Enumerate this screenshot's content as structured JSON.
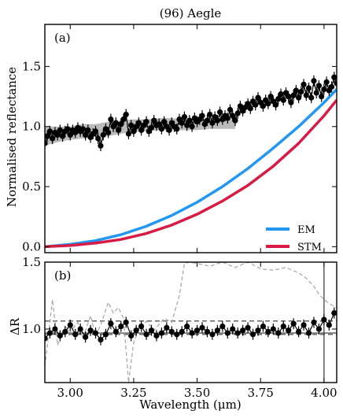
{
  "chart_data": [
    {
      "panel": "a",
      "type": "scatter",
      "title": "(96) Aegle",
      "panel_label": "(a)",
      "xlabel": "",
      "ylabel": "Normalised reflectance",
      "xlim": [
        2.9,
        4.05
      ],
      "ylim": [
        -0.05,
        1.85
      ],
      "xticks": [
        3.0,
        3.25,
        3.5,
        3.75,
        4.0
      ],
      "xtick_labels": [
        "",
        "",
        "",
        "",
        ""
      ],
      "yticks": [
        0.0,
        0.5,
        1.0,
        1.5
      ],
      "ytick_labels": [
        "0.0",
        "0.5",
        "1.0",
        "1.5"
      ],
      "legend": [
        "EM",
        "STM"
      ],
      "legend_position": "bottom-right",
      "colors": {
        "data": "#000000",
        "band": "#aaaaaa",
        "EM": "#2196f3",
        "STM": "#d81b45"
      },
      "band": {
        "x": [
          2.9,
          2.95,
          3.0,
          3.05,
          3.1,
          3.15,
          3.2,
          3.25,
          3.3,
          3.35,
          3.4,
          3.45,
          3.5,
          3.55,
          3.6,
          3.65
        ],
        "lower": [
          0.84,
          0.87,
          0.89,
          0.9,
          0.91,
          0.92,
          0.94,
          0.96,
          0.96,
          0.97,
          0.97,
          0.97,
          0.97,
          0.98,
          0.98,
          0.98
        ],
        "upper": [
          1.0,
          1.0,
          1.0,
          1.02,
          1.02,
          1.04,
          1.05,
          1.06,
          1.06,
          1.07,
          1.07,
          1.06,
          1.06,
          1.06,
          1.07,
          1.07
        ]
      },
      "series": [
        {
          "name": "EM",
          "kind": "line",
          "x": [
            2.9,
            3.0,
            3.1,
            3.2,
            3.3,
            3.4,
            3.5,
            3.6,
            3.7,
            3.8,
            3.9,
            4.0,
            4.05
          ],
          "y": [
            0.0,
            0.02,
            0.05,
            0.1,
            0.17,
            0.26,
            0.37,
            0.5,
            0.65,
            0.82,
            1.0,
            1.2,
            1.31
          ]
        },
        {
          "name": "STM",
          "kind": "line",
          "x": [
            2.9,
            3.0,
            3.1,
            3.2,
            3.3,
            3.4,
            3.5,
            3.6,
            3.7,
            3.8,
            3.9,
            4.0,
            4.05
          ],
          "y": [
            0.0,
            0.01,
            0.03,
            0.06,
            0.11,
            0.18,
            0.27,
            0.38,
            0.51,
            0.67,
            0.86,
            1.09,
            1.22
          ]
        },
        {
          "name": "data",
          "kind": "points",
          "x": [
            2.9,
            2.91,
            2.92,
            2.93,
            2.94,
            2.95,
            2.96,
            2.97,
            2.98,
            2.99,
            3.0,
            3.01,
            3.02,
            3.03,
            3.04,
            3.05,
            3.06,
            3.07,
            3.08,
            3.09,
            3.1,
            3.11,
            3.12,
            3.13,
            3.14,
            3.15,
            3.16,
            3.17,
            3.18,
            3.19,
            3.2,
            3.21,
            3.22,
            3.23,
            3.24,
            3.25,
            3.26,
            3.27,
            3.28,
            3.29,
            3.3,
            3.31,
            3.32,
            3.33,
            3.34,
            3.35,
            3.36,
            3.37,
            3.38,
            3.39,
            3.4,
            3.41,
            3.42,
            3.43,
            3.44,
            3.45,
            3.46,
            3.47,
            3.48,
            3.49,
            3.5,
            3.51,
            3.52,
            3.53,
            3.54,
            3.55,
            3.56,
            3.57,
            3.58,
            3.59,
            3.6,
            3.61,
            3.62,
            3.63,
            3.64,
            3.65,
            3.66,
            3.67,
            3.68,
            3.69,
            3.7,
            3.71,
            3.72,
            3.73,
            3.74,
            3.75,
            3.76,
            3.77,
            3.78,
            3.79,
            3.8,
            3.81,
            3.82,
            3.83,
            3.84,
            3.85,
            3.86,
            3.87,
            3.88,
            3.89,
            3.9,
            3.91,
            3.92,
            3.93,
            3.94,
            3.95,
            3.96,
            3.97,
            3.98,
            3.99,
            4.0,
            4.01,
            4.02,
            4.03,
            4.04,
            4.05
          ],
          "y": [
            0.86,
            0.92,
            0.96,
            0.9,
            0.95,
            0.93,
            0.97,
            0.92,
            0.96,
            0.98,
            0.93,
            0.97,
            0.95,
            0.99,
            0.96,
            0.98,
            0.93,
            0.97,
            0.91,
            0.94,
            0.96,
            0.9,
            0.84,
            0.93,
            0.98,
            0.95,
            1.06,
            1.0,
            1.03,
            0.97,
            1.02,
            1.06,
            1.1,
            0.94,
            1.01,
            0.96,
            1.0,
            1.03,
            0.97,
            1.01,
            1.04,
            0.96,
            0.99,
            1.05,
            1.01,
            1.02,
            0.98,
            1.04,
            1.0,
            0.97,
            1.03,
            1.0,
            0.98,
            1.06,
            1.03,
            1.08,
            1.01,
            1.05,
            1.0,
            1.07,
            1.04,
            1.06,
            1.09,
            1.02,
            1.05,
            1.1,
            1.03,
            1.08,
            1.05,
            1.12,
            1.06,
            1.09,
            1.07,
            1.14,
            1.09,
            1.05,
            1.11,
            1.17,
            1.13,
            1.16,
            1.19,
            1.15,
            1.21,
            1.18,
            1.24,
            1.2,
            1.17,
            1.22,
            1.19,
            1.25,
            1.21,
            1.18,
            1.23,
            1.27,
            1.22,
            1.28,
            1.25,
            1.2,
            1.26,
            1.3,
            1.24,
            1.29,
            1.35,
            1.26,
            1.32,
            1.24,
            1.38,
            1.28,
            1.34,
            1.25,
            1.31,
            1.37,
            1.3,
            1.33,
            1.41,
            1.36
          ]
        }
      ]
    },
    {
      "panel": "b",
      "type": "scatter",
      "title": "",
      "panel_label": "(b)",
      "xlabel": "Wavelength (μm)",
      "ylabel": "ΔR",
      "xlim": [
        2.9,
        4.05
      ],
      "ylim": [
        0.6,
        1.5
      ],
      "xticks": [
        3.0,
        3.25,
        3.5,
        3.75,
        4.0
      ],
      "xtick_labels": [
        "3.00",
        "3.25",
        "3.50",
        "3.75",
        "4.00"
      ],
      "yticks": [
        1.0,
        1.5
      ],
      "ytick_labels": [
        "1.0",
        "1.5"
      ],
      "hlines": {
        "solid": 0.97,
        "dashed": [
          1.06,
          0.96
        ]
      },
      "vline": 4.0,
      "colors": {
        "data": "#000000",
        "reference": "#aaaaaa"
      },
      "series": [
        {
          "name": "reference",
          "kind": "dashed-line",
          "x": [
            2.9,
            2.93,
            2.95,
            2.98,
            3.0,
            3.03,
            3.05,
            3.08,
            3.1,
            3.12,
            3.15,
            3.17,
            3.19,
            3.21,
            3.23,
            3.25,
            3.27,
            3.3,
            3.33,
            3.37,
            3.4,
            3.43,
            3.45,
            3.47,
            3.5,
            3.55,
            3.6,
            3.65,
            3.7,
            3.75,
            3.8,
            3.85,
            3.9,
            3.93,
            3.96,
            3.98,
            4.0,
            4.02,
            4.05
          ],
          "y": [
            0.72,
            1.22,
            0.88,
            1.02,
            0.98,
            1.05,
            0.93,
            1.1,
            0.95,
            1.03,
            1.2,
            1.12,
            1.16,
            1.08,
            0.6,
            0.9,
            1.0,
            1.06,
            0.99,
            1.08,
            1.05,
            1.25,
            1.49,
            1.5,
            1.49,
            1.47,
            1.5,
            1.46,
            1.5,
            1.45,
            1.44,
            1.46,
            1.42,
            1.38,
            1.32,
            1.26,
            1.22,
            1.19,
            1.16
          ]
        },
        {
          "name": "data",
          "kind": "points",
          "x": [
            2.9,
            2.92,
            2.94,
            2.96,
            2.98,
            3.0,
            3.02,
            3.04,
            3.06,
            3.08,
            3.1,
            3.12,
            3.14,
            3.16,
            3.18,
            3.2,
            3.22,
            3.24,
            3.26,
            3.28,
            3.3,
            3.32,
            3.34,
            3.36,
            3.38,
            3.4,
            3.42,
            3.44,
            3.46,
            3.48,
            3.5,
            3.52,
            3.54,
            3.56,
            3.58,
            3.6,
            3.62,
            3.64,
            3.66,
            3.68,
            3.7,
            3.72,
            3.74,
            3.76,
            3.78,
            3.8,
            3.82,
            3.84,
            3.86,
            3.88,
            3.9,
            3.92,
            3.94,
            3.96,
            3.98,
            4.0,
            4.02,
            4.04
          ],
          "y": [
            0.93,
            0.97,
            1.0,
            0.95,
            0.98,
            1.03,
            0.96,
            1.0,
            0.94,
            0.99,
            0.97,
            0.92,
            0.96,
            1.04,
            0.98,
            1.02,
            1.05,
            0.95,
            0.99,
            1.02,
            0.96,
            0.99,
            0.95,
            0.97,
            1.01,
            0.98,
            0.96,
            0.98,
            1.02,
            0.97,
            0.99,
            1.01,
            0.98,
            0.96,
            0.99,
            1.02,
            0.97,
            1.0,
            0.97,
            0.99,
            1.01,
            0.96,
            0.99,
            1.02,
            0.98,
            1.0,
            0.97,
            1.02,
            0.99,
            1.04,
            0.98,
            1.03,
            0.97,
            1.05,
            1.0,
            1.07,
            1.03,
            1.12
          ]
        }
      ]
    }
  ]
}
